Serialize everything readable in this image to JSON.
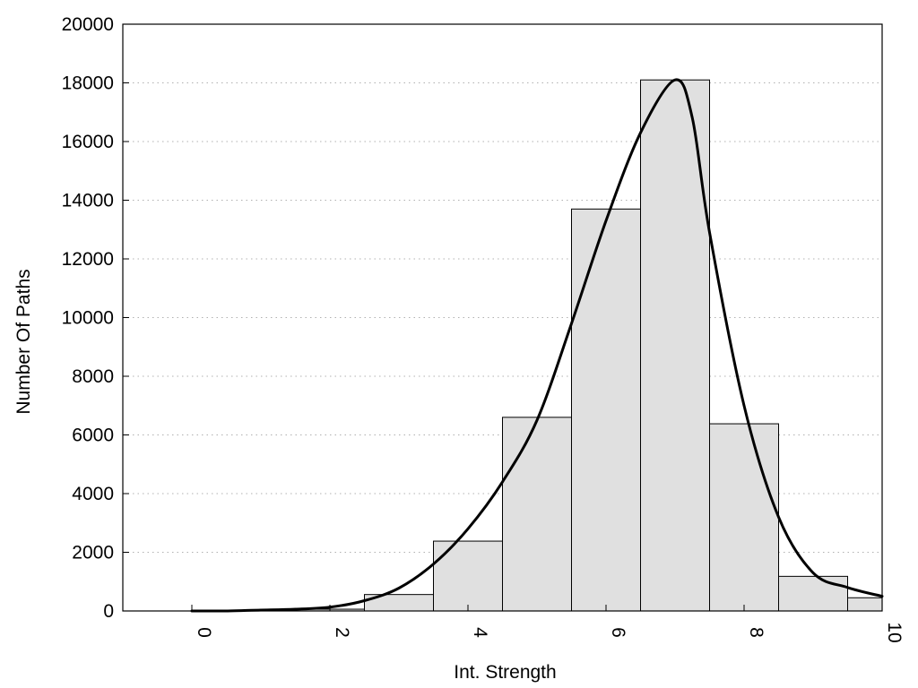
{
  "chart_data": {
    "type": "bar",
    "title": "",
    "xlabel": "Int. Strength",
    "ylabel": "Number Of Paths",
    "xlim": [
      -1,
      10
    ],
    "ylim": [
      0,
      20000
    ],
    "x_ticks": [
      0,
      2,
      4,
      6,
      8,
      10
    ],
    "y_ticks": [
      0,
      2000,
      4000,
      6000,
      8000,
      10000,
      12000,
      14000,
      16000,
      18000,
      20000
    ],
    "grid": "horizontal dotted",
    "legend": "none",
    "bin_width": 1,
    "bins": [
      {
        "x": 0,
        "count": 0
      },
      {
        "x": 1,
        "count": 0
      },
      {
        "x": 2,
        "count": 60
      },
      {
        "x": 3,
        "count": 560
      },
      {
        "x": 4,
        "count": 2380
      },
      {
        "x": 5,
        "count": 6600
      },
      {
        "x": 6,
        "count": 13700
      },
      {
        "x": 7,
        "count": 18100
      },
      {
        "x": 8,
        "count": 6380
      },
      {
        "x": 9,
        "count": 1180
      },
      {
        "x": 10,
        "count": 450
      }
    ],
    "curve": {
      "x": [
        0,
        0.5,
        1,
        1.5,
        2,
        2.5,
        3,
        3.5,
        4,
        4.5,
        5,
        5.5,
        6,
        6.5,
        7,
        7.25,
        7.5,
        8,
        8.5,
        9,
        9.5,
        10
      ],
      "y": [
        0,
        0,
        30,
        60,
        130,
        350,
        780,
        1600,
        2800,
        4400,
        6500,
        9800,
        13300,
        16300,
        18100,
        16800,
        12900,
        7000,
        3200,
        1300,
        800,
        500
      ]
    },
    "colors": {
      "bar_fill": "#e0e0e0",
      "bar_stroke": "#000000",
      "curve": "#000000",
      "grid": "#b0b0b0"
    }
  }
}
